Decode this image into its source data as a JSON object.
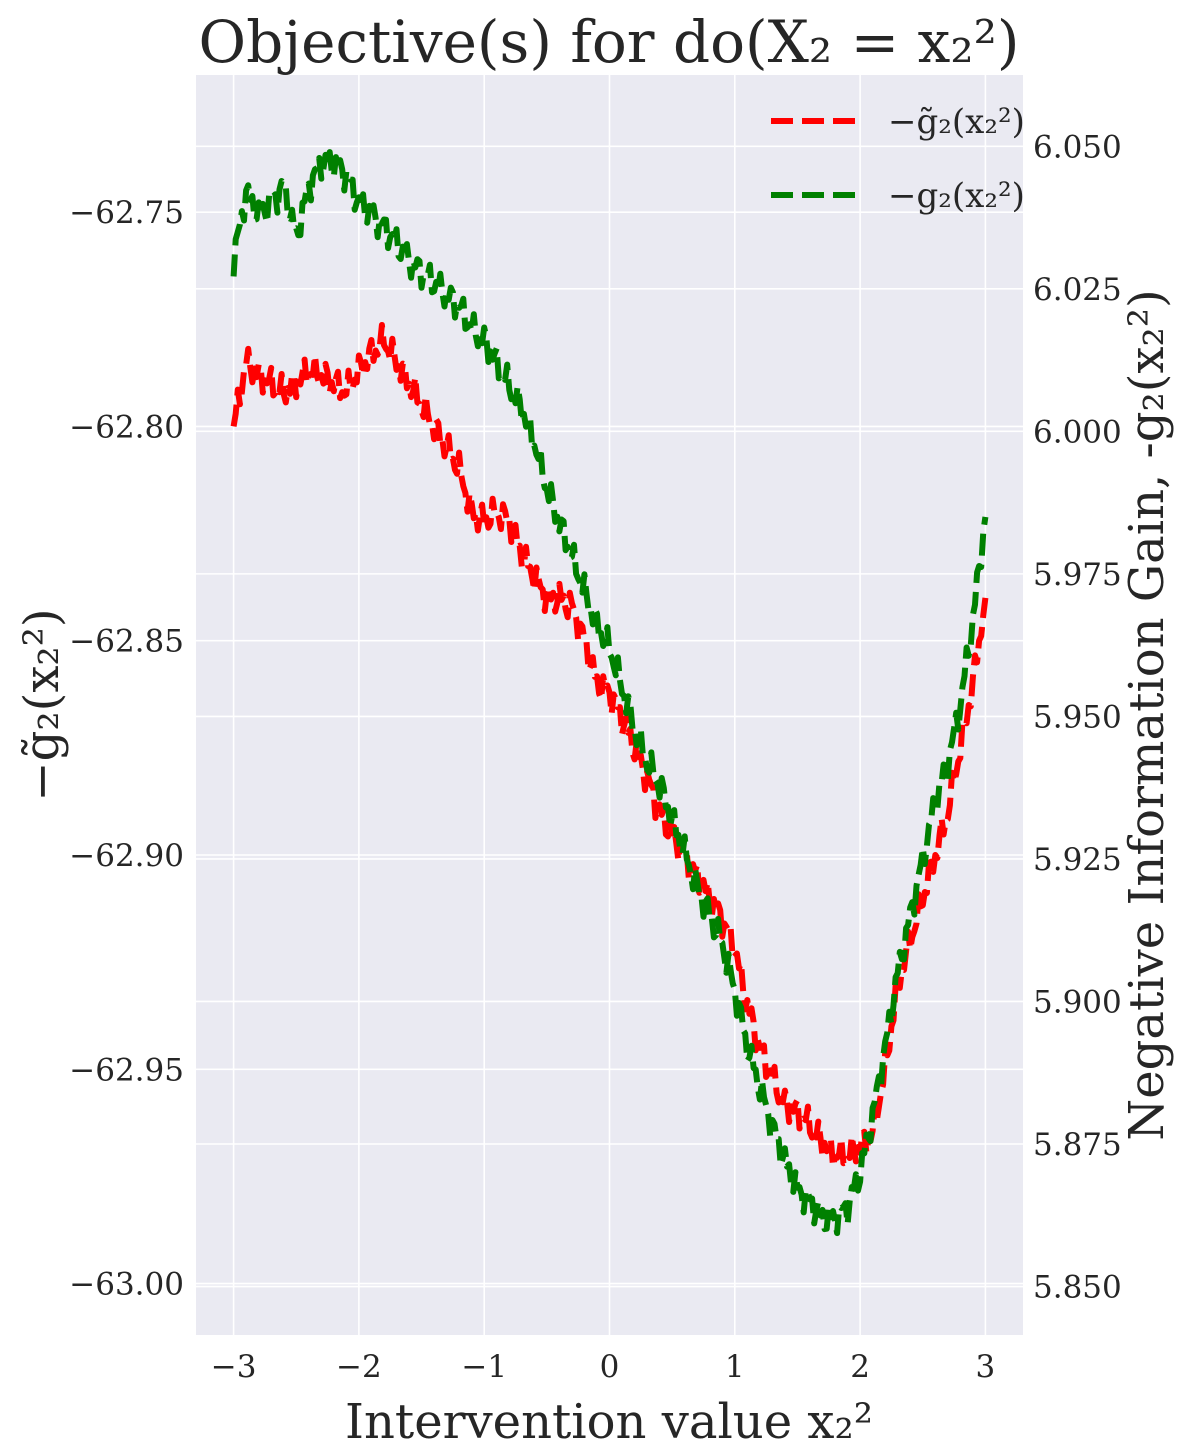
{
  "chart_data": {
    "type": "line",
    "title": "Objective(s) for do(X₂ = x₂²)",
    "xlabel": "Intervention value x₂²",
    "ylabel_left": "−g̃₂(x₂²)",
    "ylabel_right": "Negative Information Gain, -g₂(x₂²)",
    "xlim": [
      -3.3,
      3.3
    ],
    "ylim_left": [
      -63.012,
      -62.718
    ],
    "ylim_right": [
      5.8415,
      6.0625
    ],
    "x_ticks": [
      -3,
      -2,
      -1,
      0,
      1,
      2,
      3
    ],
    "x_tick_labels": [
      "−3",
      "−2",
      "−1",
      "0",
      "1",
      "2",
      "3"
    ],
    "y_left_ticks": [
      -62.75,
      -62.8,
      -62.85,
      -62.9,
      -62.95,
      -63.0
    ],
    "y_left_tick_labels": [
      "−62.75",
      "−62.80",
      "−62.85",
      "−62.90",
      "−62.95",
      "−63.00"
    ],
    "y_right_ticks": [
      6.05,
      6.025,
      6.0,
      5.975,
      5.95,
      5.925,
      5.9,
      5.875,
      5.85
    ],
    "y_right_tick_labels": [
      "6.050",
      "6.025",
      "6.000",
      "5.975",
      "5.950",
      "5.925",
      "5.900",
      "5.875",
      "5.850"
    ],
    "grid": true,
    "legend_position": "top-right",
    "background_color": "#eaeaf2",
    "series": [
      {
        "name": "−g̃₂(x₂²)",
        "axis": "left",
        "color": "#ff0000",
        "style": "dashed",
        "x": [
          -3.0,
          -2.9,
          -2.8,
          -2.7,
          -2.6,
          -2.5,
          -2.4,
          -2.3,
          -2.2,
          -2.1,
          -2.0,
          -1.9,
          -1.8,
          -1.7,
          -1.6,
          -1.5,
          -1.4,
          -1.3,
          -1.2,
          -1.1,
          -1.0,
          -0.9,
          -0.8,
          -0.7,
          -0.6,
          -0.5,
          -0.4,
          -0.3,
          -0.2,
          -0.1,
          0.0,
          0.1,
          0.2,
          0.3,
          0.4,
          0.5,
          0.6,
          0.7,
          0.8,
          0.9,
          1.0,
          1.1,
          1.2,
          1.3,
          1.4,
          1.5,
          1.6,
          1.7,
          1.8,
          1.9,
          2.0,
          2.1,
          2.2,
          2.3,
          2.4,
          2.5,
          2.6,
          2.7,
          2.8,
          2.9,
          3.0
        ],
        "values": [
          -62.8,
          -62.785,
          -62.788,
          -62.79,
          -62.792,
          -62.79,
          -62.787,
          -62.788,
          -62.79,
          -62.792,
          -62.787,
          -62.783,
          -62.78,
          -62.785,
          -62.79,
          -62.795,
          -62.8,
          -62.805,
          -62.81,
          -62.82,
          -62.822,
          -62.82,
          -62.822,
          -62.83,
          -62.835,
          -62.84,
          -62.84,
          -62.842,
          -62.85,
          -62.86,
          -62.862,
          -62.868,
          -62.875,
          -62.882,
          -62.89,
          -62.895,
          -62.9,
          -62.905,
          -62.91,
          -62.915,
          -62.922,
          -62.935,
          -62.945,
          -62.952,
          -62.958,
          -62.96,
          -62.963,
          -62.967,
          -62.97,
          -62.97,
          -62.968,
          -62.965,
          -62.95,
          -62.93,
          -62.92,
          -62.91,
          -62.9,
          -62.89,
          -62.875,
          -62.86,
          -62.84
        ]
      },
      {
        "name": "−g₂(x₂²)",
        "axis": "right",
        "color": "#008000",
        "style": "dashed",
        "x": [
          -3.0,
          -2.9,
          -2.8,
          -2.7,
          -2.6,
          -2.5,
          -2.4,
          -2.3,
          -2.2,
          -2.1,
          -2.0,
          -1.9,
          -1.8,
          -1.7,
          -1.6,
          -1.5,
          -1.4,
          -1.3,
          -1.2,
          -1.1,
          -1.0,
          -0.9,
          -0.8,
          -0.7,
          -0.6,
          -0.5,
          -0.4,
          -0.3,
          -0.2,
          -0.1,
          0.0,
          0.1,
          0.2,
          0.3,
          0.4,
          0.5,
          0.6,
          0.7,
          0.8,
          0.9,
          1.0,
          1.1,
          1.2,
          1.3,
          1.4,
          1.5,
          1.6,
          1.7,
          1.8,
          1.9,
          2.0,
          2.1,
          2.2,
          2.3,
          2.4,
          2.5,
          2.6,
          2.7,
          2.8,
          2.9,
          3.0
        ],
        "values": [
          6.03,
          6.042,
          6.038,
          6.04,
          6.043,
          6.034,
          6.043,
          6.047,
          6.047,
          6.045,
          6.04,
          6.038,
          6.036,
          6.033,
          6.03,
          6.028,
          6.026,
          6.024,
          6.022,
          6.018,
          6.016,
          6.012,
          6.008,
          6.004,
          5.998,
          5.99,
          5.984,
          5.978,
          5.972,
          5.966,
          5.962,
          5.955,
          5.948,
          5.942,
          5.938,
          5.932,
          5.926,
          5.92,
          5.915,
          5.91,
          5.902,
          5.892,
          5.885,
          5.878,
          5.872,
          5.867,
          5.865,
          5.862,
          5.862,
          5.864,
          5.87,
          5.88,
          5.892,
          5.905,
          5.915,
          5.925,
          5.935,
          5.942,
          5.952,
          5.967,
          5.985
        ]
      }
    ]
  }
}
